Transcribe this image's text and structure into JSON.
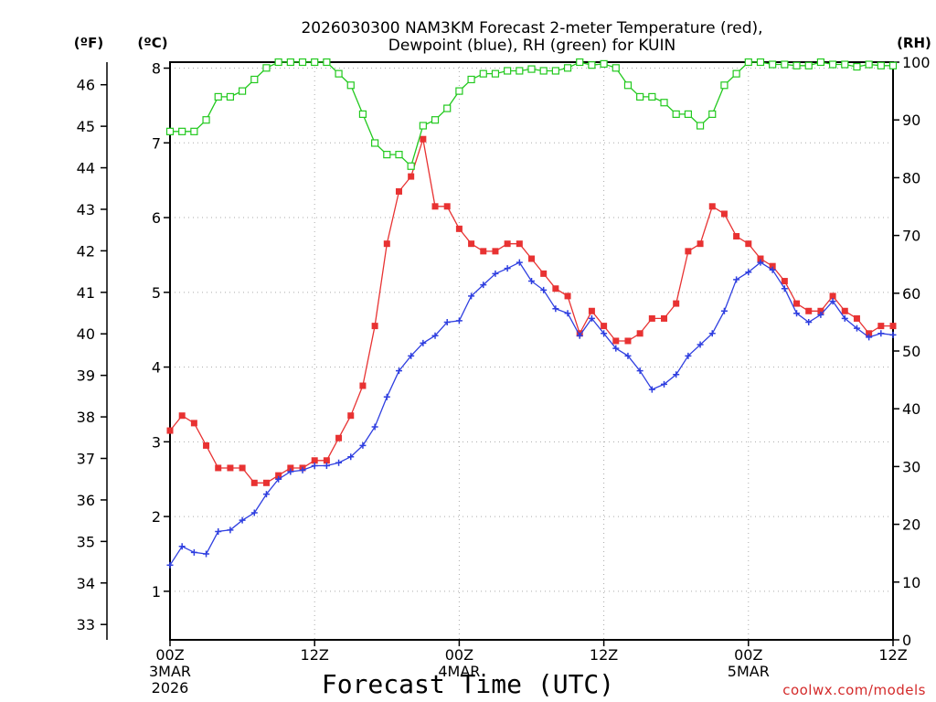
{
  "chart_data": {
    "type": "line",
    "title_line1": "2026030300 NAM3KM Forecast 2-meter Temperature (red),",
    "title_line2": "Dewpoint (blue), RH (green) for KUIN",
    "xlabel": "Forecast Time (UTC)",
    "credit": "coolwx.com/models",
    "units": {
      "fahrenheit": "(ºF)",
      "celsius": "(ºC)",
      "rh": "(RH)"
    },
    "celsius_axis": {
      "range": [
        0.35,
        8.08
      ],
      "ticks": [
        "1",
        "2",
        "3",
        "4",
        "5",
        "6",
        "7",
        "8"
      ]
    },
    "fahrenheit_axis": {
      "ticks": [
        "33",
        "34",
        "35",
        "36",
        "37",
        "38",
        "39",
        "40",
        "41",
        "42",
        "43",
        "44",
        "45",
        "46"
      ]
    },
    "rh_axis": {
      "range": [
        0,
        100
      ],
      "ticks": [
        "0",
        "10",
        "20",
        "30",
        "40",
        "50",
        "60",
        "70",
        "80",
        "90",
        "100"
      ]
    },
    "x_axis": {
      "range_hours": [
        0,
        60
      ],
      "ticks": [
        {
          "hour": 0,
          "label": "00Z",
          "date": "3MAR",
          "year": "2026"
        },
        {
          "hour": 12,
          "label": "12Z",
          "date": "",
          "year": ""
        },
        {
          "hour": 24,
          "label": "00Z",
          "date": "4MAR",
          "year": ""
        },
        {
          "hour": 36,
          "label": "12Z",
          "date": "",
          "year": ""
        },
        {
          "hour": 48,
          "label": "00Z",
          "date": "5MAR",
          "year": ""
        },
        {
          "hour": 60,
          "label": "12Z",
          "date": "",
          "year": ""
        }
      ]
    },
    "series": [
      {
        "name": "Temperature",
        "unit": "C",
        "color": "#e83232",
        "values": [
          3.15,
          3.35,
          3.25,
          2.95,
          2.65,
          2.65,
          2.65,
          2.45,
          2.45,
          2.55,
          2.65,
          2.65,
          2.75,
          2.75,
          3.05,
          3.35,
          3.75,
          4.55,
          5.65,
          6.35,
          6.55,
          7.05,
          6.15,
          6.15,
          5.85,
          5.65,
          5.55,
          5.55,
          5.65,
          5.65,
          5.45,
          5.25,
          5.05,
          4.95,
          4.45,
          4.75,
          4.55,
          4.35,
          4.35,
          4.45,
          4.65,
          4.65,
          4.85,
          5.55,
          5.65,
          6.15,
          6.05,
          5.75,
          5.65,
          5.45,
          5.35,
          5.15,
          4.85,
          4.75,
          4.75,
          4.95,
          4.75,
          4.65,
          4.45,
          4.55,
          4.55
        ]
      },
      {
        "name": "Dewpoint",
        "unit": "C",
        "color": "#2f3fe0",
        "values": [
          1.35,
          1.6,
          1.52,
          1.5,
          1.8,
          1.82,
          1.95,
          2.05,
          2.3,
          2.5,
          2.6,
          2.62,
          2.68,
          2.68,
          2.72,
          2.8,
          2.95,
          3.2,
          3.6,
          3.95,
          4.15,
          4.32,
          4.42,
          4.6,
          4.62,
          4.95,
          5.1,
          5.25,
          5.32,
          5.4,
          5.15,
          5.03,
          4.78,
          4.72,
          4.42,
          4.65,
          4.45,
          4.25,
          4.15,
          3.95,
          3.7,
          3.77,
          3.9,
          4.15,
          4.3,
          4.45,
          4.75,
          5.17,
          5.27,
          5.4,
          5.3,
          5.05,
          4.72,
          4.6,
          4.7,
          4.88,
          4.65,
          4.52,
          4.4,
          4.45,
          4.43
        ]
      },
      {
        "name": "RH",
        "unit": "%",
        "color": "#22c91e",
        "values": [
          88,
          88,
          88,
          90,
          94,
          94,
          95,
          97,
          99,
          100,
          100,
          100,
          100,
          100,
          98,
          96,
          91,
          86,
          84,
          84,
          82,
          89,
          90,
          92,
          95,
          97,
          98,
          98,
          98.5,
          98.5,
          98.8,
          98.5,
          98.5,
          99,
          100,
          99.5,
          99.7,
          99,
          96,
          94,
          94,
          93,
          91,
          91,
          89,
          91,
          96,
          98,
          100,
          100,
          99.6,
          99.6,
          99.4,
          99.4,
          100,
          99.6,
          99.6,
          99.2,
          99.6,
          99.4,
          99.4
        ]
      }
    ]
  }
}
